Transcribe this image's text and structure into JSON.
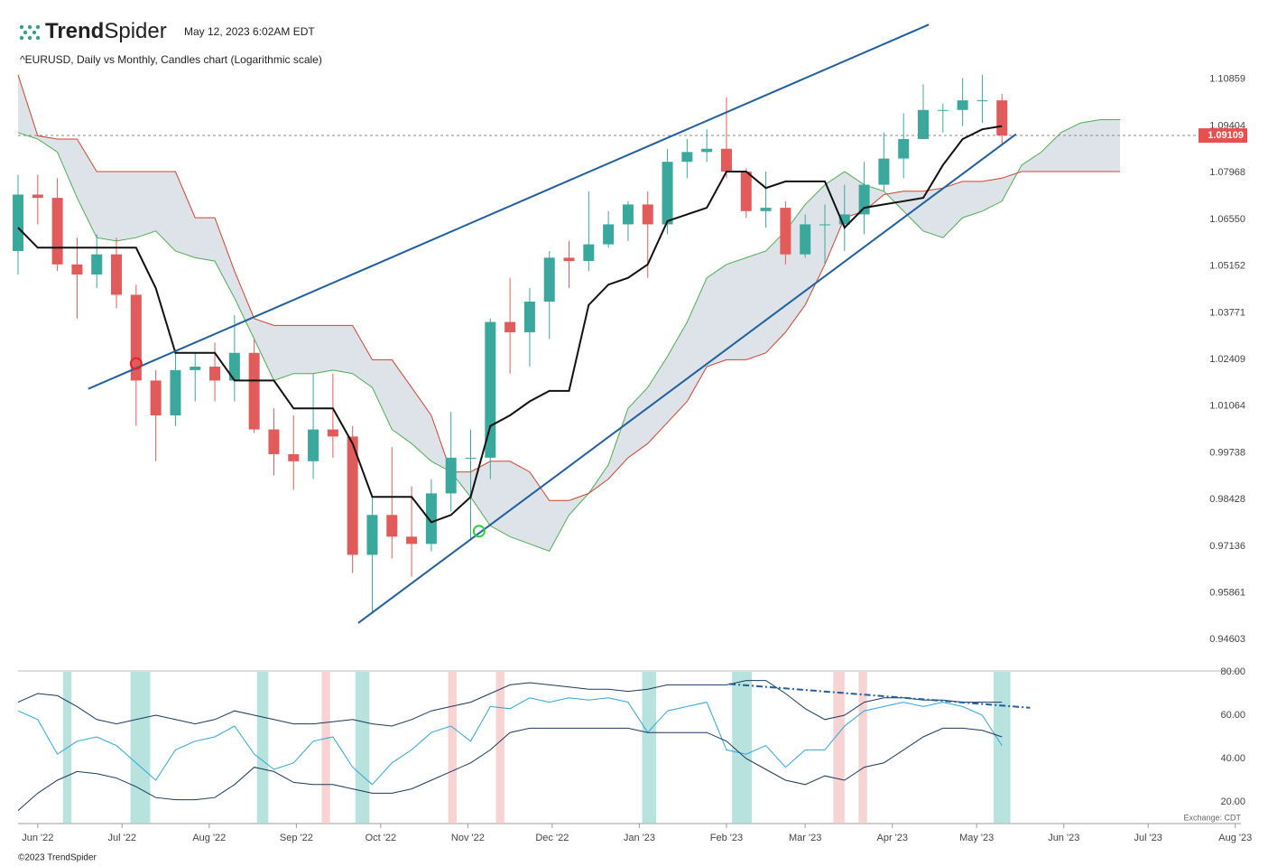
{
  "header": {
    "logo_bold": "Trend",
    "logo_light": "Spider",
    "timestamp": "May 12, 2023 6:02AM EDT"
  },
  "footer": {
    "copyright": "©2023 TrendSpider",
    "exchange": "Exchange: CDT"
  },
  "chart_data": [
    {
      "type": "candlestick",
      "title": "^EURUSD, Daily vs Monthly, Candles chart (Logarithmic scale)",
      "log_scale": true,
      "xlim": [
        -7,
        428
      ],
      "x": [
        -7,
        0,
        7,
        14,
        21,
        28,
        35,
        42,
        49,
        56,
        63,
        70,
        77,
        84,
        91,
        98,
        105,
        112,
        119,
        126,
        133,
        140,
        147,
        154,
        161,
        168,
        175,
        182,
        189,
        196,
        203,
        210,
        217,
        224,
        231,
        238,
        245,
        252,
        259,
        266,
        273,
        280,
        287,
        294,
        301,
        308,
        315,
        322,
        329,
        336,
        343,
        350,
        357,
        364,
        371,
        378,
        385
      ],
      "ylim": [
        0.9396,
        1.1108
      ],
      "yticks": [
        1.10859,
        1.09404,
        1.07968,
        {
          "value": 1.0655,
          "label": "1.06550"
        },
        1.05152,
        1.03771,
        1.02409,
        1.01064,
        0.99738,
        0.98428,
        0.97136,
        0.95861,
        0.94603
      ],
      "up_color": "#3aa89c",
      "down_color": "#e25b5b",
      "open": [
        1.056,
        1.073,
        1.072,
        1.052,
        1.049,
        1.055,
        1.043,
        1.018,
        1.008,
        1.021,
        1.022,
        1.018,
        1.026,
        1.004,
        0.997,
        0.995,
        1.004,
        1.002,
        0.969,
        0.98,
        0.974,
        0.972,
        0.986,
        0.996,
        0.996,
        1.035,
        1.032,
        1.041,
        1.054,
        1.053,
        1.058,
        1.064,
        1.07,
        1.064,
        1.083,
        1.086,
        1.087,
        1.08,
        1.068,
        1.069,
        1.055,
        1.064,
        1.064,
        1.067,
        1.076,
        1.084,
        1.09,
        1.099,
        1.099,
        1.102,
        1.102,
        null,
        null,
        null,
        null,
        null,
        null
      ],
      "high": [
        1.079,
        1.079,
        1.078,
        1.06,
        1.061,
        1.06,
        1.046,
        1.021,
        1.027,
        1.026,
        1.029,
        1.037,
        1.03,
        1.01,
        1.008,
        1.02,
        1.02,
        1.005,
        0.985,
        0.999,
        0.988,
        0.99,
        1.009,
        1.004,
        1.036,
        1.048,
        1.045,
        1.056,
        1.059,
        1.074,
        1.068,
        1.071,
        1.074,
        1.087,
        1.09,
        1.093,
        1.103,
        1.081,
        1.08,
        1.071,
        1.067,
        1.07,
        1.076,
        1.083,
        1.092,
        1.098,
        1.107,
        1.101,
        1.109,
        1.11,
        1.104,
        null,
        null,
        null,
        null,
        null,
        null
      ],
      "low": [
        1.049,
        1.064,
        1.05,
        1.036,
        1.045,
        1.039,
        1.005,
        0.995,
        1.005,
        1.012,
        1.012,
        1.012,
        1.003,
        0.991,
        0.987,
        0.99,
        0.996,
        0.964,
        0.953,
        0.968,
        0.963,
        0.97,
        0.981,
        0.973,
        0.99,
        1.02,
        1.022,
        1.03,
        1.045,
        1.05,
        1.057,
        1.059,
        1.048,
        1.061,
        1.078,
        1.083,
        1.078,
        1.066,
        1.063,
        1.052,
        1.054,
        1.052,
        1.056,
        1.061,
        1.074,
        1.078,
        1.09,
        1.092,
        1.094,
        1.095,
        1.088,
        null,
        null,
        null,
        null,
        null,
        null
      ],
      "close": [
        1.073,
        1.072,
        1.052,
        1.049,
        1.055,
        1.043,
        1.018,
        1.008,
        1.021,
        1.022,
        1.018,
        1.026,
        1.004,
        0.997,
        0.995,
        1.004,
        1.002,
        0.969,
        0.98,
        0.974,
        0.972,
        0.986,
        0.996,
        0.996,
        1.035,
        1.032,
        1.041,
        1.054,
        1.053,
        1.058,
        1.064,
        1.07,
        1.064,
        1.083,
        1.086,
        1.087,
        1.08,
        1.068,
        1.069,
        1.055,
        1.064,
        1.064,
        1.067,
        1.076,
        1.084,
        1.09,
        1.099,
        1.099,
        1.102,
        1.102,
        1.09109,
        null,
        null,
        null,
        null,
        null,
        null
      ],
      "baseline": {
        "color": "#111111",
        "values": [
          1.063,
          1.057,
          1.057,
          1.057,
          1.057,
          1.057,
          1.057,
          1.045,
          1.026,
          1.026,
          1.026,
          1.018,
          1.018,
          1.018,
          1.01,
          1.01,
          1.01,
          1.0,
          0.985,
          0.985,
          0.985,
          0.978,
          0.98,
          0.985,
          1.005,
          1.008,
          1.012,
          1.015,
          1.015,
          1.04,
          1.046,
          1.048,
          1.052,
          1.065,
          1.067,
          1.069,
          1.08,
          1.08,
          1.075,
          1.077,
          1.077,
          1.077,
          1.063,
          1.069,
          1.07,
          1.071,
          1.072,
          1.082,
          1.09,
          1.093,
          1.094,
          null,
          null,
          null,
          null,
          null,
          null
        ]
      },
      "cloud": {
        "fill": "#dde3e8",
        "span_a": {
          "color": "#4caf50",
          "values": [
            1.092,
            1.09,
            1.086,
            1.072,
            1.06,
            1.059,
            1.06,
            1.062,
            1.056,
            1.054,
            1.053,
            1.042,
            1.03,
            1.018,
            1.02,
            1.02,
            1.021,
            1.02,
            1.016,
            1.004,
            1.0,
            0.995,
            0.992,
            0.985,
            0.977,
            0.974,
            0.972,
            0.97,
            0.98,
            0.986,
            0.994,
            1.01,
            1.016,
            1.025,
            1.035,
            1.048,
            1.052,
            1.054,
            1.056,
            1.062,
            1.07,
            1.076,
            1.08,
            1.076,
            1.074,
            1.068,
            1.062,
            1.06,
            1.066,
            1.068,
            1.071,
            1.082,
            1.086,
            1.092,
            1.095,
            1.096,
            1.096
          ]
        },
        "span_b": {
          "color": "#d0442c",
          "values": [
            1.11,
            1.091,
            1.09,
            1.09,
            1.08,
            1.08,
            1.08,
            1.08,
            1.08,
            1.066,
            1.066,
            1.05,
            1.036,
            1.034,
            1.034,
            1.034,
            1.034,
            1.034,
            1.024,
            1.024,
            1.016,
            1.008,
            0.992,
            0.992,
            0.995,
            0.995,
            0.992,
            0.984,
            0.984,
            0.986,
            0.99,
            0.996,
            1.0,
            1.006,
            1.012,
            1.022,
            1.024,
            1.024,
            1.026,
            1.032,
            1.04,
            1.052,
            1.066,
            1.068,
            1.073,
            1.074,
            1.074,
            1.075,
            1.077,
            1.077,
            1.078,
            1.08,
            1.08,
            1.08,
            1.08,
            1.08,
            1.08
          ]
        }
      },
      "trendlines": [
        {
          "color": "#1f5fa0",
          "x": [
            18,
            317
          ],
          "y": [
            1.0156,
            1.1259
          ]
        },
        {
          "color": "#1f5fa0",
          "x": [
            114,
            348
          ],
          "y": [
            0.9505,
            1.0915
          ]
        }
      ],
      "markers": [
        {
          "color": "#e0262a",
          "x": 35,
          "y": 1.0229
        },
        {
          "color": "#2ecc40",
          "x": 157,
          "y": 0.9755
        }
      ],
      "last_price": 1.09109,
      "last_price_color": "#e8504f"
    },
    {
      "type": "line",
      "xlim": [
        -7,
        428
      ],
      "x": [
        -7,
        0,
        7,
        14,
        21,
        28,
        35,
        42,
        49,
        56,
        63,
        70,
        77,
        84,
        91,
        98,
        105,
        112,
        119,
        126,
        133,
        140,
        147,
        154,
        161,
        168,
        175,
        182,
        189,
        196,
        203,
        210,
        217,
        224,
        231,
        238,
        245,
        252,
        259,
        266,
        273,
        280,
        287,
        294,
        301,
        308,
        315,
        322,
        329,
        336,
        343
      ],
      "xticks": [
        {
          "value": 0,
          "label": "Jun '22"
        },
        {
          "value": 30,
          "label": "Jul '22"
        },
        {
          "value": 61,
          "label": "Aug '22"
        },
        {
          "value": 92,
          "label": "Sep '22"
        },
        {
          "value": 122,
          "label": "Oct '22"
        },
        {
          "value": 153,
          "label": "Nov '22"
        },
        {
          "value": 183,
          "label": "Dec '22"
        },
        {
          "value": 214,
          "label": "Jan '23"
        },
        {
          "value": 245,
          "label": "Feb '23"
        },
        {
          "value": 273,
          "label": "Mar '23"
        },
        {
          "value": 304,
          "label": "Apr '23"
        },
        {
          "value": 334,
          "label": "May '23"
        },
        {
          "value": 365,
          "label": "Jun '23"
        },
        {
          "value": 395,
          "label": "Jul '23"
        },
        {
          "value": 426,
          "label": "Aug '23"
        }
      ],
      "ylim": [
        10,
        80
      ],
      "yticks": [
        {
          "value": 80,
          "label": "80.00"
        },
        {
          "value": 60,
          "label": "60.00"
        },
        {
          "value": 40,
          "label": "40.00"
        },
        {
          "value": 20,
          "label": "20.00"
        }
      ],
      "series": [
        {
          "color": "#2aa6e0",
          "values": [
            62,
            58,
            42,
            48,
            50,
            46,
            38,
            30,
            44,
            48,
            50,
            55,
            42,
            35,
            38,
            48,
            50,
            36,
            28,
            38,
            44,
            52,
            55,
            48,
            64,
            63,
            68,
            66,
            68,
            67,
            68,
            66,
            52,
            62,
            64,
            66,
            44,
            42,
            46,
            36,
            44,
            44,
            55,
            62,
            64,
            66,
            64,
            66,
            64,
            60,
            46
          ]
        },
        {
          "color": "#1a3a5c",
          "values": [
            66,
            70,
            69,
            64,
            58,
            56,
            58,
            60,
            58,
            56,
            58,
            62,
            60,
            58,
            56,
            56,
            57,
            58,
            56,
            55,
            58,
            62,
            64,
            66,
            70,
            74,
            75,
            74,
            73,
            72,
            72,
            71,
            72,
            74,
            74,
            74,
            74,
            76,
            76,
            70,
            63,
            58,
            60,
            66,
            68,
            68,
            67,
            67,
            66,
            66,
            66
          ]
        },
        {
          "color": "#1a3a5c",
          "values": [
            16,
            24,
            30,
            34,
            33,
            31,
            27,
            22,
            21,
            21,
            22,
            28,
            36,
            34,
            29,
            28,
            28,
            26,
            24,
            24,
            26,
            30,
            34,
            38,
            44,
            52,
            54,
            54,
            54,
            54,
            54,
            54,
            52,
            52,
            52,
            52,
            48,
            40,
            35,
            30,
            28,
            32,
            30,
            36,
            38,
            44,
            50,
            54,
            54,
            53,
            50
          ]
        }
      ],
      "trendline": {
        "color": "#1f5fa0",
        "x": [
          246,
          353
        ],
        "y": [
          74.4,
          63.4
        ]
      },
      "highlights": [
        {
          "color": "#9fd8d2",
          "ranges": [
            [
              9,
              12
            ],
            [
              33,
              40
            ],
            [
              78,
              82
            ],
            [
              113,
              118
            ],
            [
              215,
              220
            ],
            [
              247,
              254
            ],
            [
              340,
              346
            ]
          ]
        },
        {
          "color": "#f6c4c4",
          "ranges": [
            [
              101,
              104
            ],
            [
              146,
              149
            ],
            [
              163,
              166
            ],
            [
              283,
              287
            ],
            [
              292,
              295
            ]
          ]
        }
      ]
    }
  ]
}
